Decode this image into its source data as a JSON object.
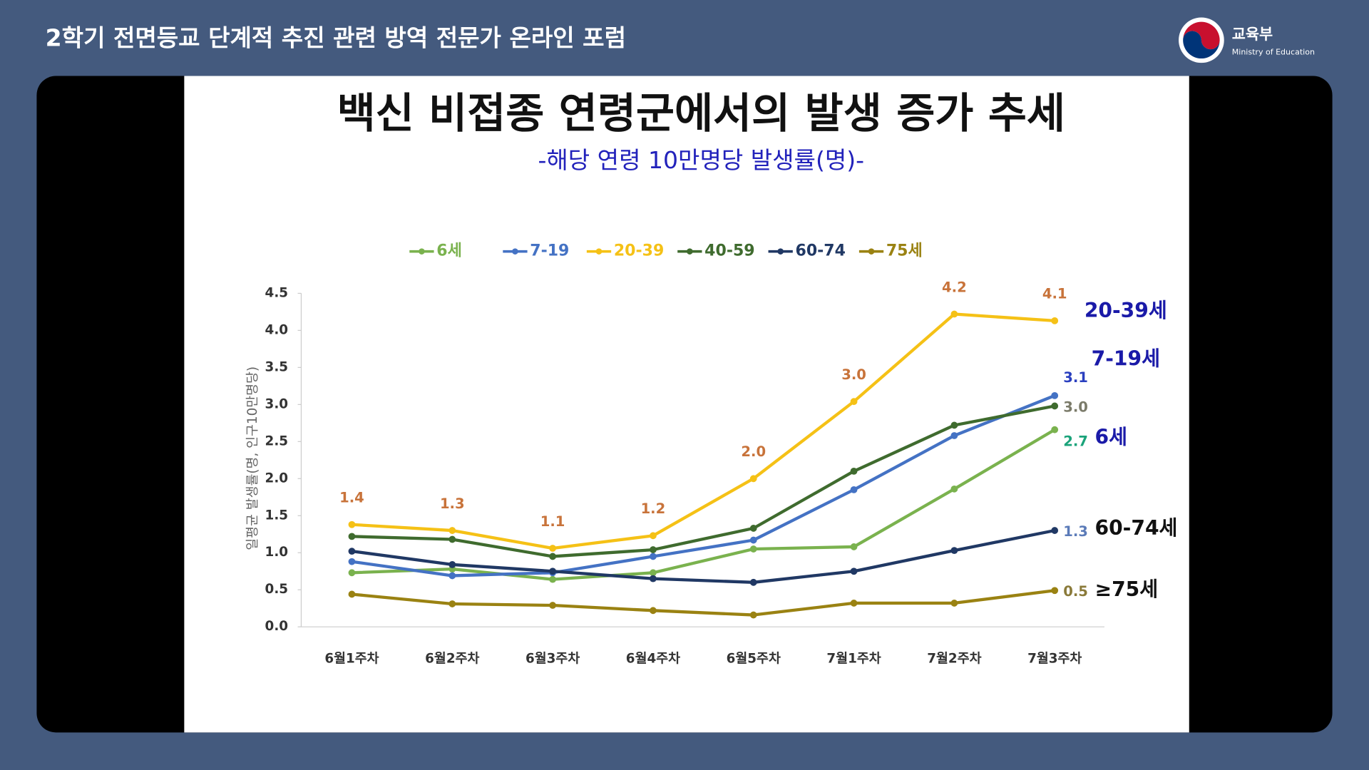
{
  "header": {
    "title": "2학기 전면등교 단계적 추진 관련 방역 전문가 온라인 포럼",
    "logo_name": "교육부",
    "logo_subtitle": "Ministry of Education"
  },
  "chart_data": {
    "type": "line",
    "title": "백신 비접종 연령군에서의 발생 증가 추세",
    "subtitle": "-해당 연령 10만명당 발생률(명)-",
    "y_label": "일평균 발생률(명, 인구10만명당)",
    "categories": [
      "6월1주차",
      "6월2주차",
      "6월3주차",
      "6월4주차",
      "6월5주차",
      "7월1주차",
      "7월2주차",
      "7월3주차"
    ],
    "ylim": [
      0,
      4.5
    ],
    "yticks": [
      {
        "value": 0,
        "label": "0.0"
      },
      0.5,
      {
        "value": 1,
        "label": "1.0"
      },
      1.5,
      {
        "value": 2,
        "label": "2.0"
      },
      2.5,
      {
        "value": 3,
        "label": "3.0"
      },
      3.5,
      {
        "value": 4,
        "label": "4.0"
      },
      4.5
    ],
    "grid": false,
    "series": [
      {
        "name": "6세",
        "color": "#7ab24e",
        "label_color": "#1aa37a",
        "values": [
          0.73,
          0.78,
          0.64,
          0.73,
          1.05,
          1.08,
          1.86,
          2.66
        ],
        "value_labels": [
          null,
          null,
          null,
          null,
          null,
          null,
          null,
          "2.7"
        ]
      },
      {
        "name": "7-19",
        "color": "#4472c4",
        "label_color": "#2a3fbf",
        "values": [
          0.88,
          0.69,
          0.73,
          0.95,
          1.17,
          1.85,
          2.58,
          3.12
        ],
        "value_labels": [
          null,
          null,
          null,
          null,
          null,
          null,
          null,
          "3.1"
        ]
      },
      {
        "name": "20-39",
        "color": "#f5c116",
        "label_color": "#c8733a",
        "values": [
          1.38,
          1.3,
          1.06,
          1.23,
          2.0,
          3.04,
          4.22,
          4.13
        ],
        "value_labels": [
          "1.4",
          "1.3",
          "1.1",
          "1.2",
          "2.0",
          "3.0",
          "4.2",
          "4.1"
        ]
      },
      {
        "name": "40-59",
        "color": "#3f6b2e",
        "label_color": "#7b7b6a",
        "values": [
          1.22,
          1.18,
          0.95,
          1.04,
          1.33,
          2.1,
          2.72,
          2.98
        ],
        "value_labels": [
          null,
          null,
          null,
          null,
          null,
          null,
          null,
          "3.0"
        ]
      },
      {
        "name": "60-74",
        "color": "#203864",
        "label_color": "#5b7bb8",
        "values": [
          1.02,
          0.84,
          0.75,
          0.65,
          0.6,
          0.75,
          1.03,
          1.3
        ],
        "value_labels": [
          null,
          null,
          null,
          null,
          null,
          null,
          null,
          "1.3"
        ]
      },
      {
        "name": "75세",
        "color": "#9a8212",
        "label_color": "#8a7a3a",
        "values": [
          0.44,
          0.31,
          0.29,
          0.22,
          0.16,
          0.32,
          0.32,
          0.49
        ],
        "value_labels": [
          null,
          null,
          null,
          null,
          null,
          null,
          null,
          "0.5"
        ]
      }
    ],
    "annotations": [
      {
        "text": "20-39세",
        "color": "#1a1aa8"
      },
      {
        "text": "7-19세",
        "color": "#1a1aa8"
      },
      {
        "text": "6세",
        "color": "#1a1aa8"
      },
      {
        "text": "60-74세",
        "color": "#111111"
      },
      {
        "text": "≥75세",
        "color": "#111111"
      }
    ]
  }
}
